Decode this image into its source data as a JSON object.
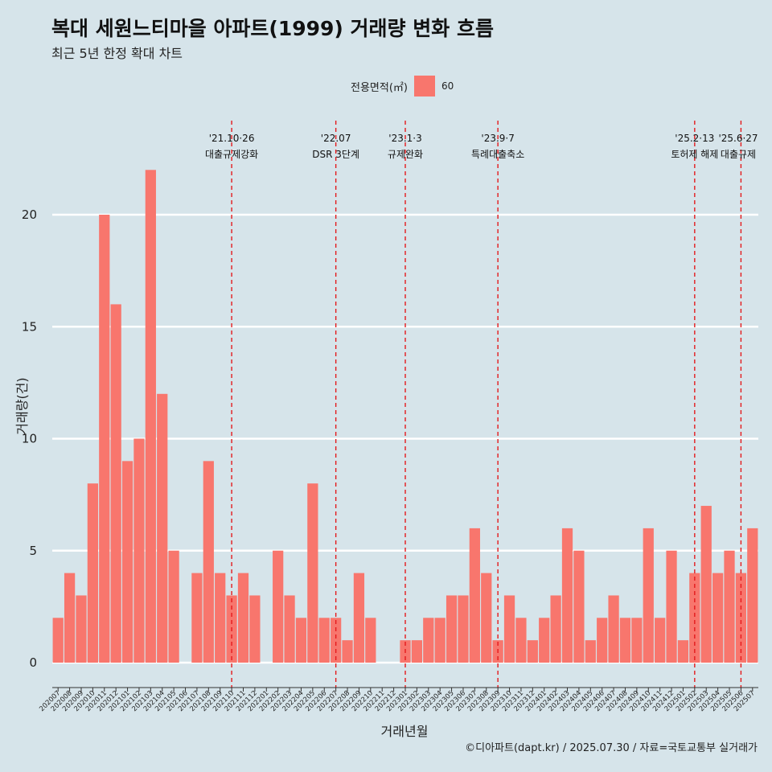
{
  "title": "복대 세원느티마을 아파트(1999) 거래량 변화 흐름",
  "subtitle": "최근 5년 한정 확대 차트",
  "legend": {
    "title": "전용면적(㎡)",
    "label": "60",
    "color": "#f8766d"
  },
  "source": "©디아파트(dapt.kr) / 2025.07.30 / 자료=국토교통부 실거래가",
  "chart_data": {
    "type": "bar",
    "xlabel": "거래년월",
    "ylabel": "거래량(건)",
    "ylim": [
      0,
      22
    ],
    "yticks": [
      0,
      5,
      10,
      15,
      20
    ],
    "grid": true,
    "bar_color": "#f8766d",
    "categories": [
      "202007",
      "202008",
      "202009",
      "202010",
      "202011",
      "202012",
      "202101",
      "202102",
      "202103",
      "202104",
      "202105",
      "202106",
      "202107",
      "202108",
      "202109",
      "202110",
      "202111",
      "202112",
      "202201",
      "202202",
      "202203",
      "202204",
      "202205",
      "202206",
      "202207",
      "202208",
      "202209",
      "202210",
      "202211",
      "202212",
      "202301",
      "202302",
      "202303",
      "202304",
      "202305",
      "202306",
      "202307",
      "202308",
      "202309",
      "202310",
      "202311",
      "202312",
      "202401",
      "202402",
      "202403",
      "202404",
      "202405",
      "202406",
      "202407",
      "202408",
      "202409",
      "202410",
      "202411",
      "202412",
      "202501",
      "202502",
      "202503",
      "202504",
      "202505",
      "202506",
      "202507"
    ],
    "series": [
      {
        "name": "60",
        "values": [
          2,
          4,
          3,
          8,
          20,
          16,
          9,
          10,
          22,
          12,
          5,
          0,
          4,
          9,
          4,
          3,
          4,
          3,
          0,
          5,
          3,
          2,
          8,
          2,
          2,
          1,
          4,
          2,
          0,
          0,
          1,
          1,
          2,
          2,
          3,
          3,
          6,
          4,
          1,
          3,
          2,
          1,
          2,
          3,
          6,
          5,
          1,
          2,
          3,
          2,
          2,
          6,
          2,
          5,
          1,
          4,
          7,
          4,
          5,
          4,
          6
        ]
      }
    ],
    "annotations": [
      {
        "x": "202110",
        "date": "'21.10·26",
        "label": "대출규제강화"
      },
      {
        "x": "202207",
        "date": "'22.07",
        "label": "DSR 3단계"
      },
      {
        "x": "202301",
        "date": "'23.1·3",
        "label": "규제완화"
      },
      {
        "x": "202309",
        "date": "'23.9·7",
        "label": "특례대출축소"
      },
      {
        "x": "202502",
        "date": "'25.2·13",
        "label": "토허제 해제"
      },
      {
        "x": "202506",
        "date": "'25.6·27",
        "label": "대출규제"
      }
    ]
  }
}
